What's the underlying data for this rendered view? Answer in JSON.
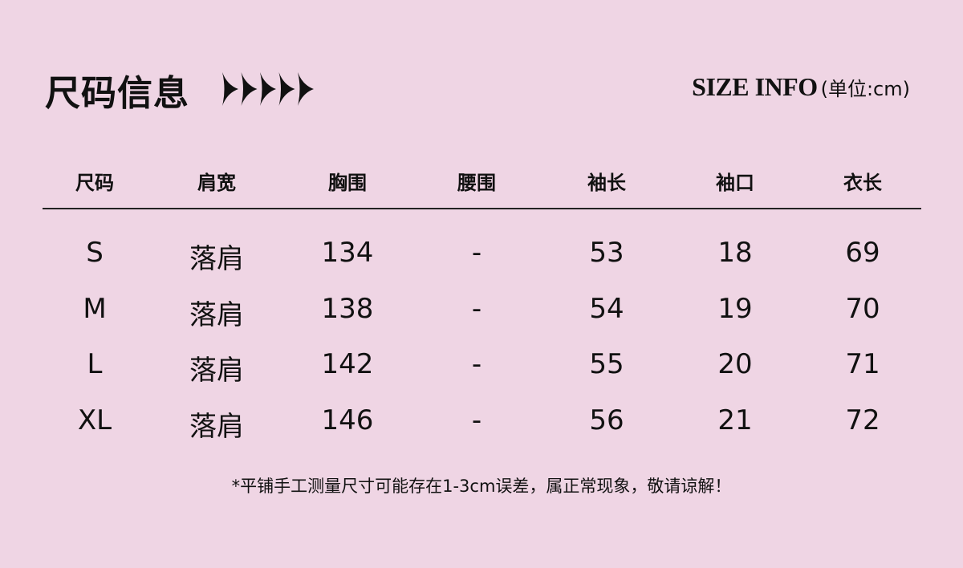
{
  "header": {
    "title": "尺码信息",
    "title_en": "SIZE INFO",
    "unit": "(单位:cm)",
    "arrow_icon": "arrow-right-icon",
    "arrow_count": 5
  },
  "table": {
    "columns": [
      "尺码",
      "肩宽",
      "胸围",
      "腰围",
      "袖长",
      "袖口",
      "衣长"
    ],
    "rows": [
      [
        "S",
        "落肩",
        "134",
        "-",
        "53",
        "18",
        "69"
      ],
      [
        "M",
        "落肩",
        "138",
        "-",
        "54",
        "19",
        "70"
      ],
      [
        "L",
        "落肩",
        "142",
        "-",
        "55",
        "20",
        "71"
      ],
      [
        "XL",
        "落肩",
        "146",
        "-",
        "56",
        "21",
        "72"
      ]
    ]
  },
  "note": "*平铺手工测量尺寸可能存在1-3cm误差，属正常现象，敬请谅解！",
  "colors": {
    "background": "#efd5e4",
    "text": "#111111"
  }
}
